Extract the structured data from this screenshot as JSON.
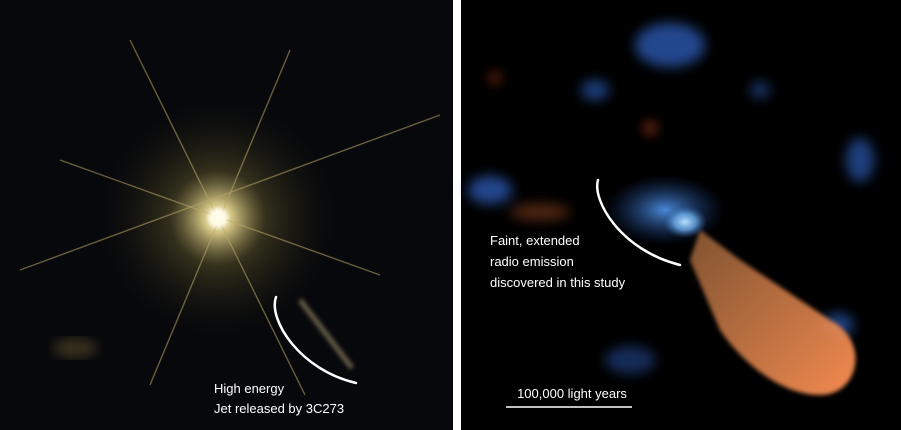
{
  "left_panel": {
    "annotation": [
      "High energy",
      "Jet released by 3C273"
    ]
  },
  "right_panel": {
    "annotation": [
      "Faint, extended",
      "radio emission",
      "discovered in this study"
    ],
    "scale_bar": "100,000 light years"
  }
}
